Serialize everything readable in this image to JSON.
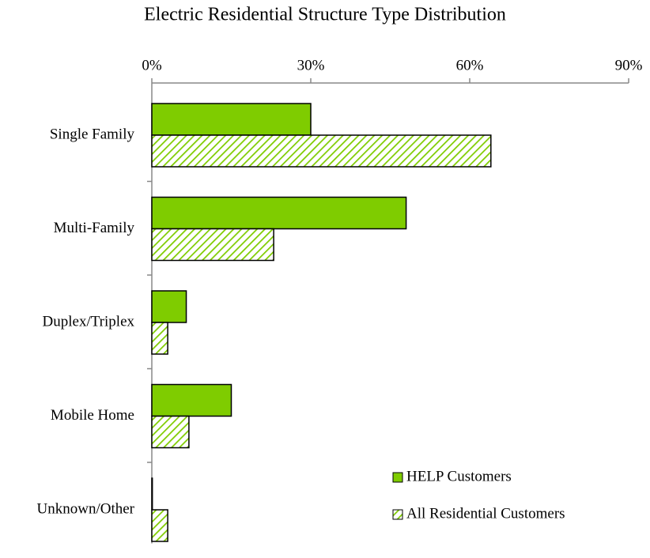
{
  "chart_data": {
    "type": "bar",
    "orientation": "horizontal",
    "title": "Electric Residential Structure Type Distribution",
    "categories": [
      "Single Family",
      "Multi-Family",
      "Duplex/Triplex",
      "Mobile Home",
      "Unknown/Other"
    ],
    "series": [
      {
        "name": "HELP Customers",
        "color": "#7fcc00",
        "pattern": "solid",
        "values": [
          30,
          48,
          6.5,
          15,
          0.1
        ]
      },
      {
        "name": "All Residential Customers",
        "color": "#7fcc00",
        "pattern": "hatch",
        "values": [
          64,
          23,
          3,
          7,
          3
        ]
      }
    ],
    "xlim": [
      0,
      90
    ],
    "xticks": [
      {
        "value": 0,
        "label": "0%"
      },
      {
        "value": 30,
        "label": "30%"
      },
      {
        "value": 60,
        "label": "60%"
      },
      {
        "value": 90,
        "label": "90%"
      }
    ],
    "xaxis_position": "top",
    "grid": false,
    "legend": "lower right"
  }
}
